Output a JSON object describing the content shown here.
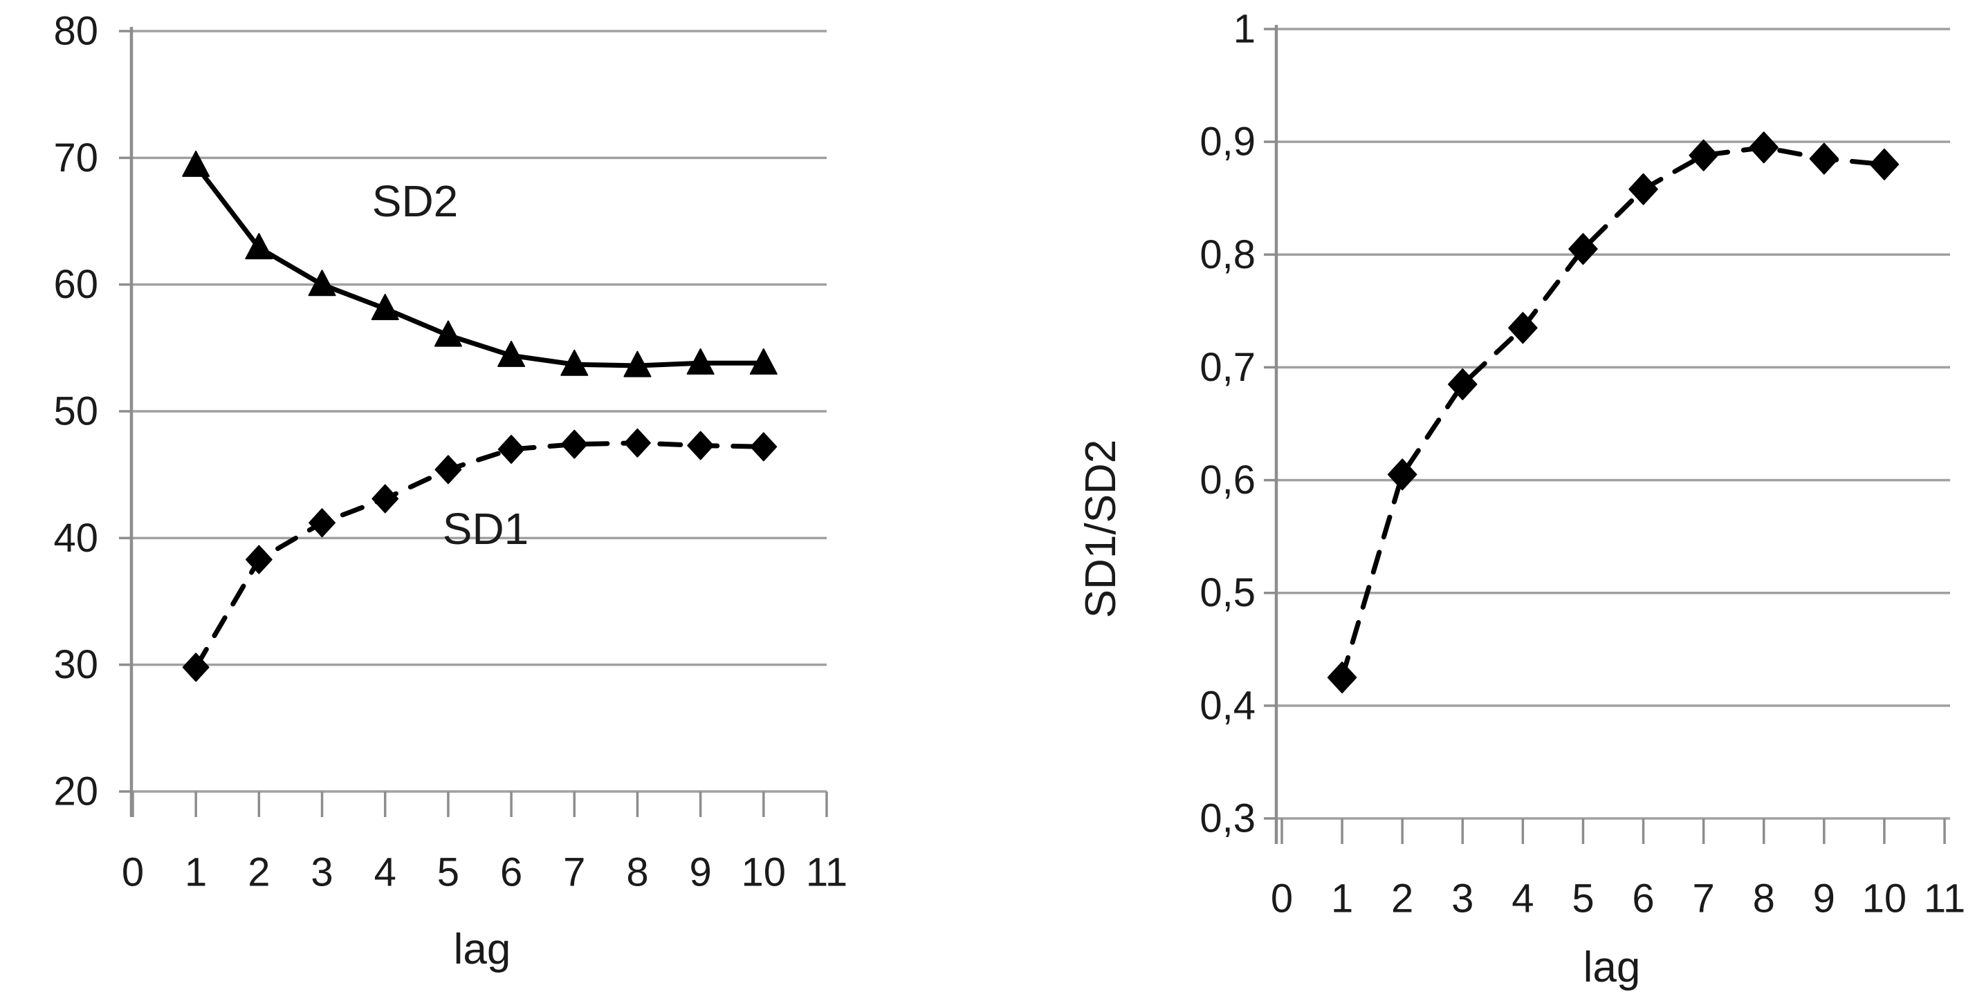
{
  "colors": {
    "background": "#ffffff",
    "gridline": "#a0a0a0",
    "axis": "#8d8d8d",
    "series": "#000000",
    "text": "#1a1a1a"
  },
  "left_chart_labels": {
    "sd2_series_label": "SD2",
    "sd1_series_label": "SD1",
    "x_title": "lag"
  },
  "right_chart_labels": {
    "y_title": "SD1/SD2",
    "x_title": "lag"
  },
  "chart_data": [
    {
      "id": "sd1-sd2-vs-lag",
      "type": "line",
      "title": "",
      "xlabel": "lag",
      "ylabel": "",
      "x": [
        1,
        2,
        3,
        4,
        5,
        6,
        7,
        8,
        9,
        10
      ],
      "series": [
        {
          "name": "SD2",
          "line_style": "solid",
          "marker": "triangle",
          "values": [
            69.4,
            62.9,
            60.0,
            58.1,
            56.0,
            54.4,
            53.7,
            53.6,
            53.8,
            53.8
          ]
        },
        {
          "name": "SD1",
          "line_style": "dashed",
          "marker": "diamond",
          "values": [
            29.8,
            38.3,
            41.2,
            43.1,
            45.4,
            47.0,
            47.4,
            47.5,
            47.3,
            47.2
          ]
        }
      ],
      "xlim": [
        0,
        11
      ],
      "ylim": [
        20,
        80
      ],
      "x_ticks": [
        0,
        1,
        2,
        3,
        4,
        5,
        6,
        7,
        8,
        9,
        10,
        11
      ],
      "x_tick_labels": [
        "0",
        "1",
        "2",
        "3",
        "4",
        "5",
        "6",
        "7",
        "8",
        "9",
        "10",
        "11"
      ],
      "y_ticks": [
        20,
        30,
        40,
        50,
        60,
        70,
        80
      ],
      "y_tick_labels": [
        "20",
        "30",
        "40",
        "50",
        "60",
        "70",
        "80"
      ],
      "grid": true,
      "legend": "inline-series-labels"
    },
    {
      "id": "sd1-sd2-ratio-vs-lag",
      "type": "line",
      "title": "",
      "xlabel": "lag",
      "ylabel": "SD1/SD2",
      "x": [
        1,
        2,
        3,
        4,
        5,
        6,
        7,
        8,
        9,
        10
      ],
      "series": [
        {
          "name": "SD1/SD2",
          "line_style": "dashed",
          "marker": "diamond",
          "values": [
            0.425,
            0.605,
            0.685,
            0.735,
            0.805,
            0.858,
            0.888,
            0.895,
            0.885,
            0.88
          ]
        }
      ],
      "xlim": [
        0,
        11
      ],
      "ylim": [
        0.3,
        1.0
      ],
      "x_ticks": [
        0,
        1,
        2,
        3,
        4,
        5,
        6,
        7,
        8,
        9,
        10,
        11
      ],
      "x_tick_labels": [
        "0",
        "1",
        "2",
        "3",
        "4",
        "5",
        "6",
        "7",
        "8",
        "9",
        "10",
        "11"
      ],
      "y_ticks": [
        0.3,
        0.4,
        0.5,
        0.6,
        0.7,
        0.8,
        0.9,
        1.0
      ],
      "y_tick_labels": [
        "0,3",
        "0,4",
        "0,5",
        "0,6",
        "0,7",
        "0,8",
        "0,9",
        "1"
      ],
      "grid": true,
      "legend": "none",
      "decimal_separator": "comma"
    }
  ]
}
